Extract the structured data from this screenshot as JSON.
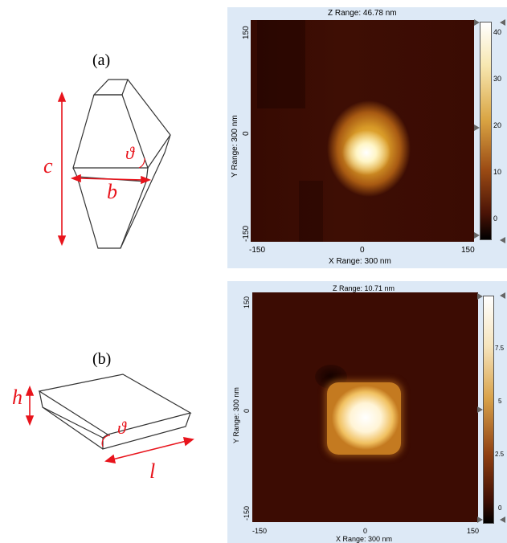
{
  "diagrams": {
    "a": {
      "panel_label": "(a)",
      "length_label": "c",
      "base_label": "b",
      "angle_label": "ϑ"
    },
    "b": {
      "panel_label": "(b)",
      "height_label": "h",
      "length_label": "l",
      "angle_label": "ϑ"
    }
  },
  "afm_top": {
    "z_range": "Z Range:  46.78 nm",
    "x_range": "X Range: 300 nm",
    "y_range": "Y Range: 300 nm",
    "x_ticks": [
      "-150",
      "0",
      "150"
    ],
    "y_ticks": [
      "150",
      "0",
      "-150"
    ],
    "colorbar_ticks": [
      "40",
      "30",
      "20",
      "10",
      "0"
    ]
  },
  "afm_bottom": {
    "z_range": "Z Range:  10.71 nm",
    "x_range": "X Range: 300 nm",
    "y_range": "Y Range: 300 nm",
    "x_ticks": [
      "-150",
      "0",
      "150"
    ],
    "y_ticks": [
      "150",
      "0",
      "-150"
    ],
    "colorbar_ticks": [
      "7.5",
      "5",
      "2.5",
      "0"
    ]
  },
  "colors": {
    "line": "#333333",
    "annotation": "#e8141c",
    "afm_dark": "#3a0b03",
    "afm_bright": "#ffffff",
    "frame": "#dde9f6"
  }
}
